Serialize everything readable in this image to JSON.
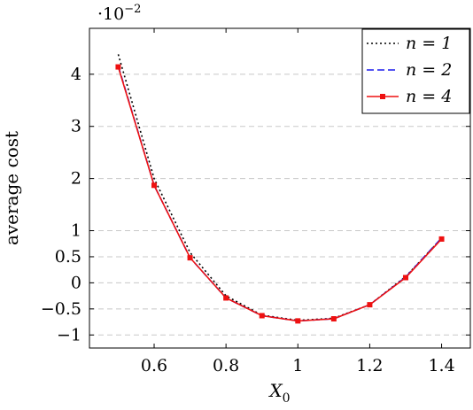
{
  "chart_data": {
    "type": "line",
    "xlabel": "X0",
    "ylabel": "average cost",
    "y_scale_label": "·10−2",
    "xlim": [
      0.42,
      1.48
    ],
    "ylim": [
      -1.25,
      4.88
    ],
    "x_ticks": [
      {
        "v": 0.6,
        "label": "0.6"
      },
      {
        "v": 0.8,
        "label": "0.8"
      },
      {
        "v": 1.0,
        "label": "1"
      },
      {
        "v": 1.2,
        "label": "1.2"
      },
      {
        "v": 1.4,
        "label": "1.4"
      }
    ],
    "y_ticks": [
      {
        "v": -1,
        "label": "−1"
      },
      {
        "v": -0.5,
        "label": "−0.5"
      },
      {
        "v": 0,
        "label": "0"
      },
      {
        "v": 0.5,
        "label": "0.5"
      },
      {
        "v": 1,
        "label": "1"
      },
      {
        "v": 2,
        "label": "2"
      },
      {
        "v": 3,
        "label": "3"
      },
      {
        "v": 4,
        "label": "4"
      }
    ],
    "grid": "horizontal dashed",
    "legend_position": "top-right",
    "series": [
      {
        "name": "n = 1",
        "color": "#000000",
        "style": "dotted",
        "marker": "none",
        "x": [
          0.5,
          0.6,
          0.7,
          0.8,
          0.9,
          1.0,
          1.1,
          1.2,
          1.3,
          1.4
        ],
        "y": [
          4.38,
          2.0,
          0.58,
          -0.25,
          -0.62,
          -0.72,
          -0.68,
          -0.42,
          0.12,
          0.85
        ]
      },
      {
        "name": "n = 2",
        "color": "#1a1aee",
        "style": "dashed",
        "marker": "none",
        "x": [
          0.5,
          0.6,
          0.7,
          0.8,
          0.9,
          1.0,
          1.1,
          1.2,
          1.3,
          1.4
        ],
        "y": [
          4.16,
          1.87,
          0.48,
          -0.29,
          -0.63,
          -0.73,
          -0.69,
          -0.42,
          0.11,
          0.86
        ]
      },
      {
        "name": "n = 4",
        "color": "#ee1111",
        "style": "solid",
        "marker": "square",
        "x": [
          0.5,
          0.6,
          0.7,
          0.8,
          0.9,
          1.0,
          1.1,
          1.2,
          1.3,
          1.4
        ],
        "y": [
          4.14,
          1.87,
          0.48,
          -0.29,
          -0.63,
          -0.73,
          -0.69,
          -0.42,
          0.1,
          0.84
        ]
      }
    ]
  }
}
